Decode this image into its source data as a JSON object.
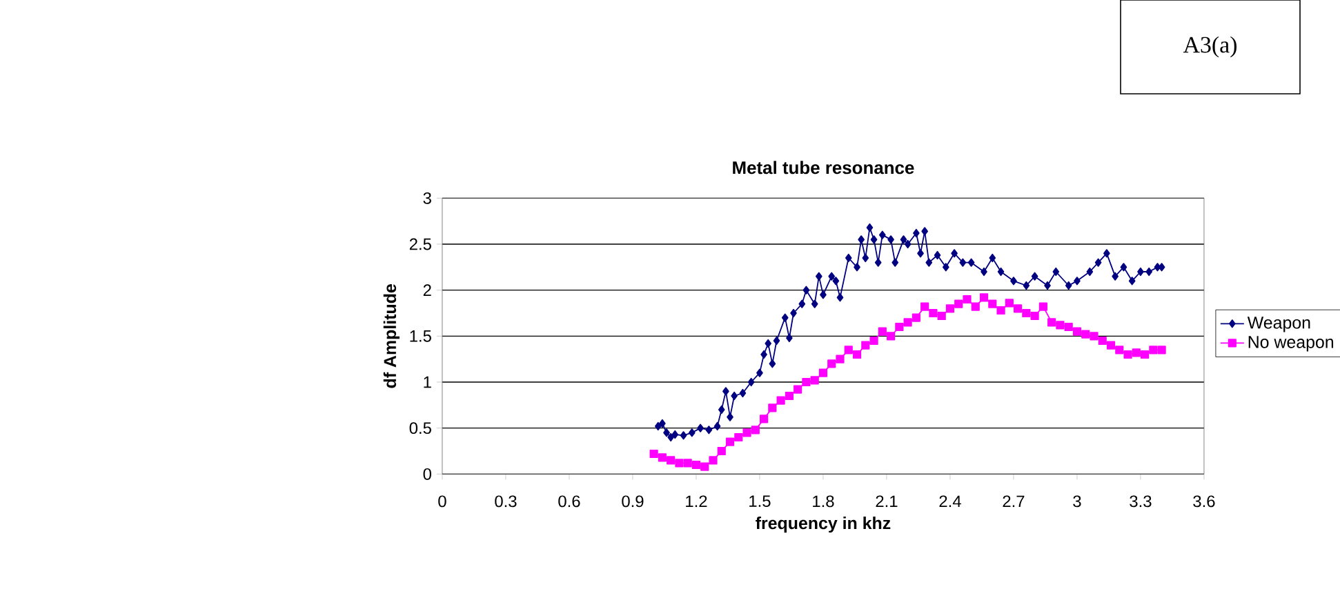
{
  "chart_data": {
    "type": "line",
    "title": "Metal tube resonance",
    "xlabel": "frequency in khz",
    "ylabel": "df Amplitude",
    "annotations": [
      "A3(a)"
    ],
    "xlim": [
      0,
      3.6
    ],
    "xticks": [
      0,
      0.3,
      0.6,
      0.9,
      1.2,
      1.5,
      1.8,
      2.1,
      2.4,
      2.7,
      3,
      3.3,
      3.6
    ],
    "ylim": [
      0,
      3
    ],
    "yticks": [
      0,
      0.5,
      1,
      1.5,
      2,
      2.5,
      3
    ],
    "grid": "y",
    "legend": "right",
    "series": [
      {
        "name": "Weapon",
        "color": "#000080",
        "marker": "diamond",
        "x": [
          1.02,
          1.04,
          1.06,
          1.08,
          1.1,
          1.14,
          1.18,
          1.22,
          1.26,
          1.3,
          1.32,
          1.34,
          1.36,
          1.38,
          1.42,
          1.46,
          1.5,
          1.52,
          1.54,
          1.56,
          1.58,
          1.62,
          1.64,
          1.66,
          1.7,
          1.72,
          1.76,
          1.78,
          1.8,
          1.84,
          1.86,
          1.88,
          1.92,
          1.96,
          1.98,
          2.0,
          2.02,
          2.04,
          2.06,
          2.08,
          2.12,
          2.14,
          2.18,
          2.2,
          2.24,
          2.26,
          2.28,
          2.3,
          2.34,
          2.38,
          2.42,
          2.46,
          2.5,
          2.56,
          2.6,
          2.64,
          2.7,
          2.76,
          2.8,
          2.86,
          2.9,
          2.96,
          3.0,
          3.06,
          3.1,
          3.14,
          3.18,
          3.22,
          3.26,
          3.3,
          3.34,
          3.38,
          3.4
        ],
        "values": [
          0.52,
          0.55,
          0.45,
          0.4,
          0.43,
          0.42,
          0.45,
          0.5,
          0.48,
          0.52,
          0.7,
          0.9,
          0.62,
          0.85,
          0.88,
          1.0,
          1.1,
          1.3,
          1.42,
          1.2,
          1.45,
          1.7,
          1.48,
          1.75,
          1.85,
          2.0,
          1.85,
          2.15,
          1.95,
          2.15,
          2.1,
          1.92,
          2.35,
          2.25,
          2.55,
          2.35,
          2.68,
          2.55,
          2.3,
          2.6,
          2.55,
          2.3,
          2.55,
          2.5,
          2.62,
          2.4,
          2.64,
          2.3,
          2.38,
          2.25,
          2.4,
          2.3,
          2.3,
          2.2,
          2.35,
          2.2,
          2.1,
          2.05,
          2.15,
          2.05,
          2.2,
          2.05,
          2.1,
          2.2,
          2.3,
          2.4,
          2.15,
          2.25,
          2.1,
          2.2,
          2.2,
          2.25,
          2.25
        ]
      },
      {
        "name": "No weapon",
        "color": "#ff00ff",
        "marker": "square",
        "x": [
          1.0,
          1.04,
          1.08,
          1.12,
          1.16,
          1.2,
          1.24,
          1.28,
          1.32,
          1.36,
          1.4,
          1.44,
          1.48,
          1.52,
          1.56,
          1.6,
          1.64,
          1.68,
          1.72,
          1.76,
          1.8,
          1.84,
          1.88,
          1.92,
          1.96,
          2.0,
          2.04,
          2.08,
          2.12,
          2.16,
          2.2,
          2.24,
          2.28,
          2.32,
          2.36,
          2.4,
          2.44,
          2.48,
          2.52,
          2.56,
          2.6,
          2.64,
          2.68,
          2.72,
          2.76,
          2.8,
          2.84,
          2.88,
          2.92,
          2.96,
          3.0,
          3.04,
          3.08,
          3.12,
          3.16,
          3.2,
          3.24,
          3.28,
          3.32,
          3.36,
          3.4
        ],
        "values": [
          0.22,
          0.18,
          0.15,
          0.12,
          0.12,
          0.1,
          0.08,
          0.15,
          0.25,
          0.35,
          0.4,
          0.45,
          0.48,
          0.6,
          0.72,
          0.8,
          0.85,
          0.92,
          1.0,
          1.02,
          1.1,
          1.2,
          1.25,
          1.35,
          1.3,
          1.4,
          1.45,
          1.55,
          1.5,
          1.6,
          1.65,
          1.7,
          1.82,
          1.75,
          1.72,
          1.8,
          1.85,
          1.9,
          1.82,
          1.92,
          1.85,
          1.78,
          1.86,
          1.8,
          1.75,
          1.72,
          1.82,
          1.65,
          1.62,
          1.6,
          1.55,
          1.52,
          1.5,
          1.45,
          1.4,
          1.35,
          1.3,
          1.32,
          1.3,
          1.35,
          1.35
        ]
      }
    ]
  }
}
